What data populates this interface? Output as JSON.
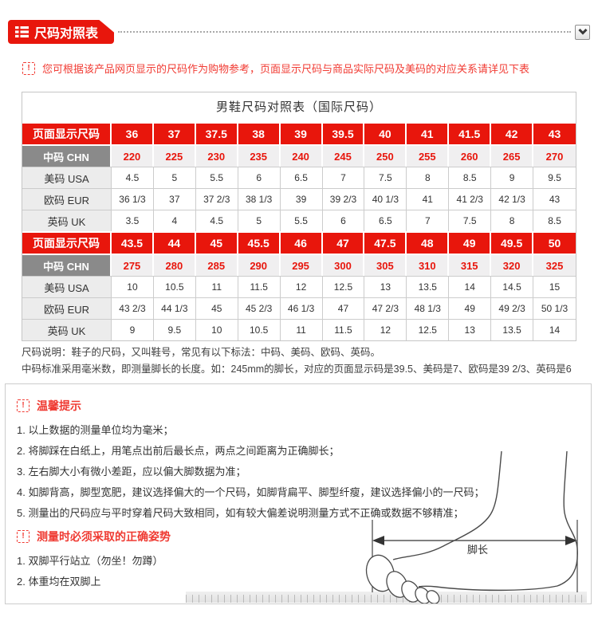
{
  "colors": {
    "accent_red": "#e8160c",
    "text_red": "#f13b33",
    "header_gray": "#8a8a8a"
  },
  "header": {
    "title": "尺码对照表"
  },
  "notice": {
    "text": "您可根据该产品网页显示的尺码作为购物参考，页面显示尺码与商品实际尺码及美码的对应关系请详见下表"
  },
  "size_table": {
    "title": "男鞋尺码对照表（国际尺码）",
    "rows": [
      {
        "label": "页面显示尺码",
        "style": "page",
        "values": [
          "36",
          "37",
          "37.5",
          "38",
          "39",
          "39.5",
          "40",
          "41",
          "41.5",
          "42",
          "43"
        ]
      },
      {
        "label": "中码 CHN",
        "style": "chn",
        "values": [
          "220",
          "225",
          "230",
          "235",
          "240",
          "245",
          "250",
          "255",
          "260",
          "265",
          "270"
        ]
      },
      {
        "label": "美码 USA",
        "style": "plain",
        "values": [
          "4.5",
          "5",
          "5.5",
          "6",
          "6.5",
          "7",
          "7.5",
          "8",
          "8.5",
          "9",
          "9.5"
        ]
      },
      {
        "label": "欧码 EUR",
        "style": "plain",
        "values": [
          "36 1/3",
          "37",
          "37 2/3",
          "38 1/3",
          "39",
          "39 2/3",
          "40 1/3",
          "41",
          "41 2/3",
          "42 1/3",
          "43"
        ]
      },
      {
        "label": "英码 UK",
        "style": "plain",
        "values": [
          "3.5",
          "4",
          "4.5",
          "5",
          "5.5",
          "6",
          "6.5",
          "7",
          "7.5",
          "8",
          "8.5"
        ]
      },
      {
        "label": "页面显示尺码",
        "style": "page",
        "values": [
          "43.5",
          "44",
          "45",
          "45.5",
          "46",
          "47",
          "47.5",
          "48",
          "49",
          "49.5",
          "50"
        ]
      },
      {
        "label": "中码 CHN",
        "style": "chn",
        "values": [
          "275",
          "280",
          "285",
          "290",
          "295",
          "300",
          "305",
          "310",
          "315",
          "320",
          "325"
        ]
      },
      {
        "label": "美码 USA",
        "style": "plain",
        "values": [
          "10",
          "10.5",
          "11",
          "11.5",
          "12",
          "12.5",
          "13",
          "13.5",
          "14",
          "14.5",
          "15"
        ]
      },
      {
        "label": "欧码 EUR",
        "style": "plain",
        "values": [
          "43 2/3",
          "44 1/3",
          "45",
          "45 2/3",
          "46 1/3",
          "47",
          "47 2/3",
          "48 1/3",
          "49",
          "49 2/3",
          "50 1/3"
        ]
      },
      {
        "label": "英码 UK",
        "style": "plain",
        "values": [
          "9",
          "9.5",
          "10",
          "10.5",
          "11",
          "11.5",
          "12",
          "12.5",
          "13",
          "13.5",
          "14"
        ]
      }
    ]
  },
  "description": {
    "line1": "尺码说明：鞋子的尺码，又叫鞋号，常见有以下标法：中码、美码、欧码、英码。",
    "line2": "中码标准采用毫米数，即测量脚长的长度。如：245mm的脚长，对应的页面显示码是39.5、美码是7、欧码是39 2/3、英码是6"
  },
  "tips": {
    "title": "温馨提示",
    "items": [
      "1. 以上数据的测量单位均为毫米；",
      "2. 将脚踩在白纸上，用笔点出前后最长点，两点之间距离为正确脚长；",
      "3. 左右脚大小有微小差距，应以偏大脚数据为准；",
      "4. 如脚背高，脚型宽肥，建议选择偏大的一个尺码，如脚背扁平、脚型纤瘦，建议选择偏小的一尺码；",
      "5. 测量出的尺码应与平时穿着尺码大致相同，如有较大偏差说明测量方式不正确或数据不够精准；"
    ]
  },
  "posture": {
    "title": "测量时必须采取的正确姿势",
    "items": [
      "1. 双脚平行站立（勿坐！勿蹲）",
      "2. 体重均在双脚上"
    ]
  },
  "diagram": {
    "foot_length_label": "脚长"
  }
}
